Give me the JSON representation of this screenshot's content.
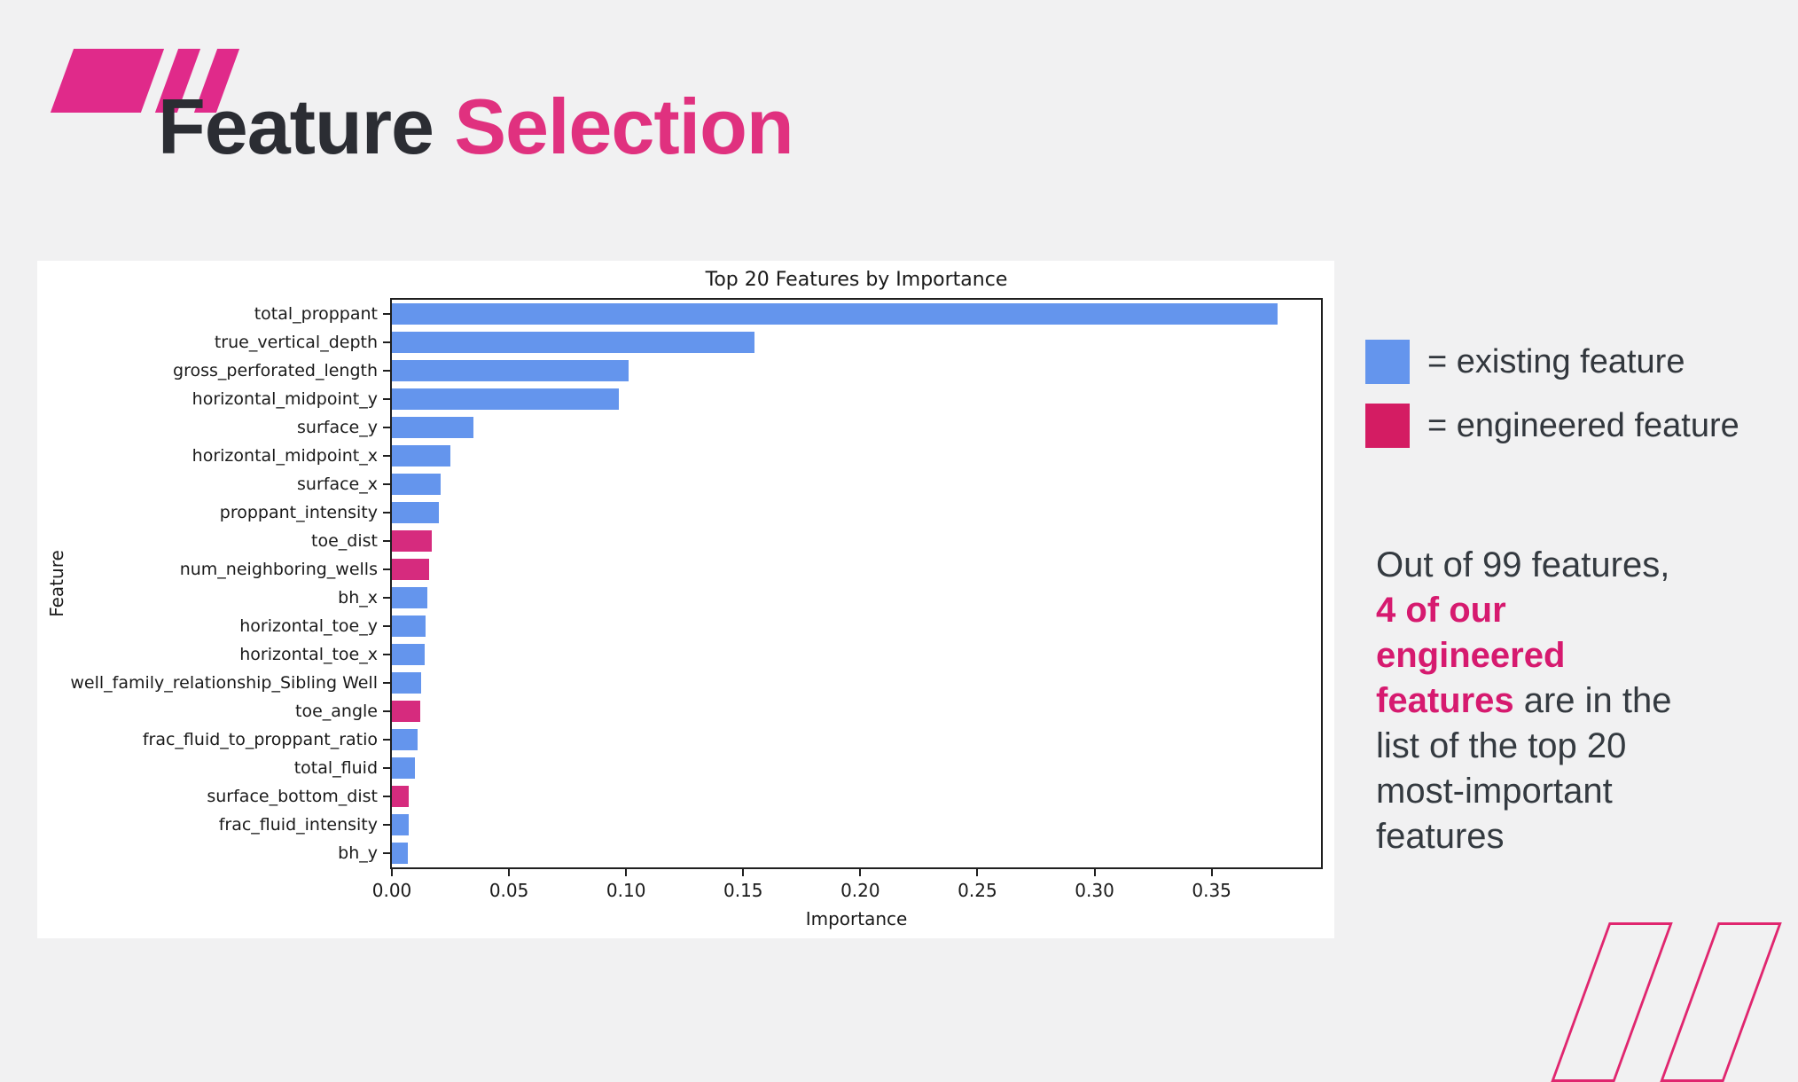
{
  "slide": {
    "title_black": "Feature",
    "title_pink": "Selection"
  },
  "chart_data": {
    "type": "bar",
    "orientation": "horizontal",
    "title": "Top 20 Features by Importance",
    "xlabel": "Importance",
    "ylabel": "Feature",
    "xlim": [
      0,
      0.3967
    ],
    "x_tick_values": [
      0.0,
      0.05,
      0.1,
      0.15,
      0.2,
      0.25,
      0.3,
      0.35
    ],
    "x_tick_labels": [
      "0.00",
      "0.05",
      "0.10",
      "0.15",
      "0.20",
      "0.25",
      "0.30",
      "0.35"
    ],
    "grid": false,
    "categories": [
      "total_proppant",
      "true_vertical_depth",
      "gross_perforated_length",
      "horizontal_midpoint_y",
      "surface_y",
      "horizontal_midpoint_x",
      "surface_x",
      "proppant_intensity",
      "toe_dist",
      "num_neighboring_wells",
      "bh_x",
      "horizontal_toe_y",
      "horizontal_toe_x",
      "well_family_relationship_Sibling Well",
      "toe_angle",
      "frac_fluid_to_proppant_ratio",
      "total_fluid",
      "surface_bottom_dist",
      "frac_fluid_intensity",
      "bh_y"
    ],
    "values": [
      0.378,
      0.155,
      0.101,
      0.097,
      0.035,
      0.025,
      0.021,
      0.02,
      0.017,
      0.016,
      0.015,
      0.0145,
      0.014,
      0.0125,
      0.012,
      0.011,
      0.01,
      0.0073,
      0.0071,
      0.0069
    ],
    "bar_types": [
      "existing",
      "existing",
      "existing",
      "existing",
      "existing",
      "existing",
      "existing",
      "existing",
      "engineered",
      "engineered",
      "existing",
      "existing",
      "existing",
      "existing",
      "engineered",
      "existing",
      "existing",
      "engineered",
      "existing",
      "existing"
    ],
    "colors": {
      "existing": "#6495ed",
      "engineered": "#d62b7e"
    }
  },
  "legend": {
    "items": [
      {
        "color": "#6495ed",
        "label": "= existing feature",
        "name": "existing-feature"
      },
      {
        "color": "#d41c63",
        "label": "= engineered feature",
        "name": "engineered-feature"
      }
    ]
  },
  "callout": {
    "lines": [
      {
        "segments": [
          {
            "text": "Out of 99 features,",
            "style": "normal"
          }
        ]
      },
      {
        "segments": [
          {
            "text": "4 of our",
            "style": "highlight"
          }
        ]
      },
      {
        "segments": [
          {
            "text": "engineered",
            "style": "highlight"
          }
        ]
      },
      {
        "segments": [
          {
            "text": "features",
            "style": "highlight"
          },
          {
            "text": " are in the",
            "style": "normal"
          }
        ]
      },
      {
        "segments": [
          {
            "text": "list of the top 20",
            "style": "normal"
          }
        ]
      },
      {
        "segments": [
          {
            "text": "most-important",
            "style": "normal"
          }
        ]
      },
      {
        "segments": [
          {
            "text": "features",
            "style": "normal"
          }
        ]
      }
    ]
  }
}
